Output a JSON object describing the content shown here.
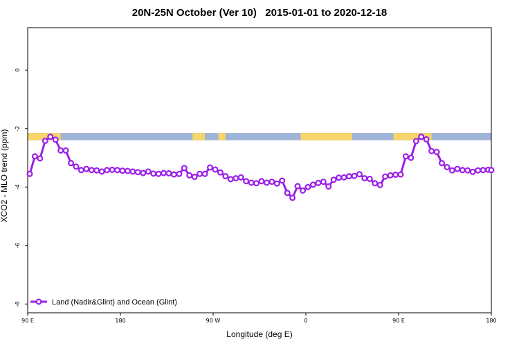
{
  "chart_data": {
    "type": "line",
    "title": "20N-25N October (Ver 10)   2015-01-01 to 2020-12-18",
    "xlabel": "Longitude (deg E)",
    "ylabel": "XCO2 - MLO trend (ppm)",
    "xlim": [
      90,
      540
    ],
    "ylim": [
      -8.3,
      1.45
    ],
    "x_ticks": [
      {
        "value": 90,
        "label": "90 E"
      },
      {
        "value": 180,
        "label": "180"
      },
      {
        "value": 270,
        "label": "90 W"
      },
      {
        "value": 360,
        "label": "0"
      },
      {
        "value": 450,
        "label": "90 E"
      },
      {
        "value": 540,
        "label": "180"
      }
    ],
    "y_ticks": [
      {
        "value": 0,
        "label": "0"
      },
      {
        "value": -2,
        "label": "-2"
      },
      {
        "value": -4,
        "label": "-4"
      },
      {
        "value": -6,
        "label": "-6"
      },
      {
        "value": -8,
        "label": "-8"
      }
    ],
    "grid": false,
    "legend_position": "bottom-left",
    "land_ocean_strip": {
      "y_range": [
        -2.4,
        -2.15
      ],
      "ocean_color": "#9fb4d6",
      "land_color": "#f6d56a",
      "land_segments": [
        [
          90,
          122
        ],
        [
          250,
          262
        ],
        [
          275,
          282
        ],
        [
          355,
          405
        ],
        [
          445,
          482
        ]
      ]
    },
    "series": [
      {
        "name": "Land (Nadir&Glint) and Ocean (Glint)",
        "color": "#9b1fe8",
        "x": [
          92,
          97,
          102,
          107,
          112,
          117,
          122,
          127,
          132,
          137,
          142,
          147,
          152,
          157,
          162,
          167,
          172,
          177,
          182,
          187,
          192,
          197,
          202,
          207,
          212,
          217,
          222,
          227,
          232,
          237,
          242,
          247,
          252,
          257,
          262,
          267,
          272,
          277,
          282,
          287,
          292,
          297,
          302,
          307,
          312,
          317,
          322,
          327,
          332,
          337,
          342,
          347,
          352,
          357,
          362,
          367,
          372,
          377,
          382,
          387,
          392,
          397,
          402,
          407,
          412,
          417,
          422,
          427,
          432,
          437,
          442,
          447,
          452,
          457,
          462,
          467,
          472,
          477,
          482,
          487,
          492,
          497,
          502,
          507,
          512,
          517,
          522,
          527,
          532,
          537,
          540
        ],
        "values": [
          -3.55,
          -2.95,
          -3.02,
          -2.42,
          -2.28,
          -2.38,
          -2.75,
          -2.75,
          -3.18,
          -3.3,
          -3.42,
          -3.38,
          -3.42,
          -3.43,
          -3.47,
          -3.42,
          -3.41,
          -3.42,
          -3.44,
          -3.45,
          -3.47,
          -3.49,
          -3.52,
          -3.47,
          -3.54,
          -3.55,
          -3.52,
          -3.53,
          -3.57,
          -3.55,
          -3.35,
          -3.6,
          -3.65,
          -3.55,
          -3.55,
          -3.33,
          -3.4,
          -3.5,
          -3.63,
          -3.73,
          -3.7,
          -3.67,
          -3.8,
          -3.85,
          -3.87,
          -3.8,
          -3.85,
          -3.82,
          -3.88,
          -3.78,
          -4.2,
          -4.37,
          -3.97,
          -4.12,
          -4.0,
          -3.92,
          -3.86,
          -3.82,
          -3.98,
          -3.75,
          -3.68,
          -3.67,
          -3.63,
          -3.62,
          -3.56,
          -3.7,
          -3.72,
          -3.87,
          -3.93,
          -3.64,
          -3.6,
          -3.58,
          -3.57,
          -2.95,
          -3.0,
          -2.43,
          -2.28,
          -2.37,
          -2.77,
          -2.8,
          -3.18,
          -3.32,
          -3.43,
          -3.38,
          -3.42,
          -3.43,
          -3.48,
          -3.43,
          -3.42,
          -3.41,
          -3.42
        ]
      }
    ]
  }
}
